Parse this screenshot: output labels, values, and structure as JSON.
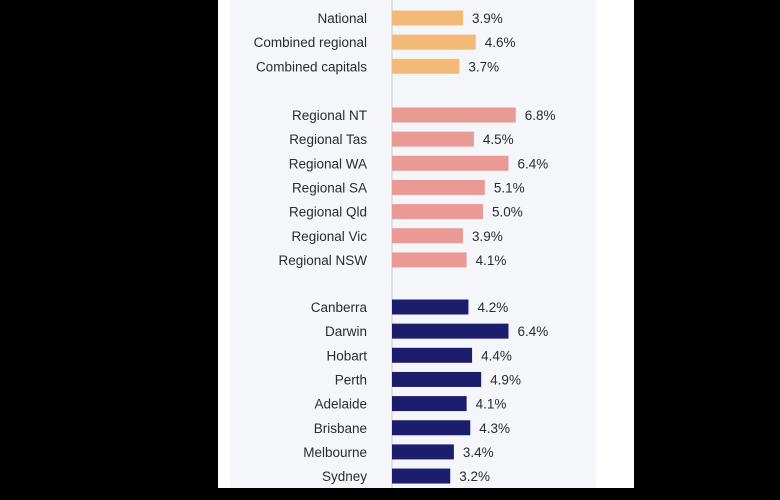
{
  "colors": {
    "national": "#f2b977",
    "regional": "#e99a94",
    "capitals": "#1c1d6d",
    "axis": "#c8cad2"
  },
  "chart_data": {
    "type": "bar",
    "orientation": "horizontal",
    "value_suffix": "%",
    "groups": [
      {
        "color_key": "national",
        "categories": [
          "National",
          "Combined regional",
          "Combined capitals"
        ],
        "values": [
          3.9,
          4.6,
          3.7
        ]
      },
      {
        "color_key": "regional",
        "categories": [
          "Regional NT",
          "Regional Tas",
          "Regional WA",
          "Regional SA",
          "Regional Qld",
          "Regional Vic",
          "Regional NSW"
        ],
        "values": [
          6.8,
          4.5,
          6.4,
          5.1,
          5.0,
          3.9,
          4.1
        ]
      },
      {
        "color_key": "capitals",
        "categories": [
          "Canberra",
          "Darwin",
          "Hobart",
          "Perth",
          "Adelaide",
          "Brisbane",
          "Melbourne",
          "Sydney"
        ],
        "values": [
          4.2,
          6.4,
          4.4,
          4.9,
          4.1,
          4.3,
          3.4,
          3.2
        ]
      }
    ],
    "labels": [
      "3.9%",
      "4.6%",
      "3.7%",
      "6.8%",
      "4.5%",
      "6.4%",
      "5.1%",
      "5.0%",
      "3.9%",
      "4.1%",
      "4.2%",
      "6.4%",
      "4.4%",
      "4.9%",
      "4.1%",
      "4.3%",
      "3.4%",
      "3.2%"
    ],
    "grid": false,
    "legend": "none"
  }
}
